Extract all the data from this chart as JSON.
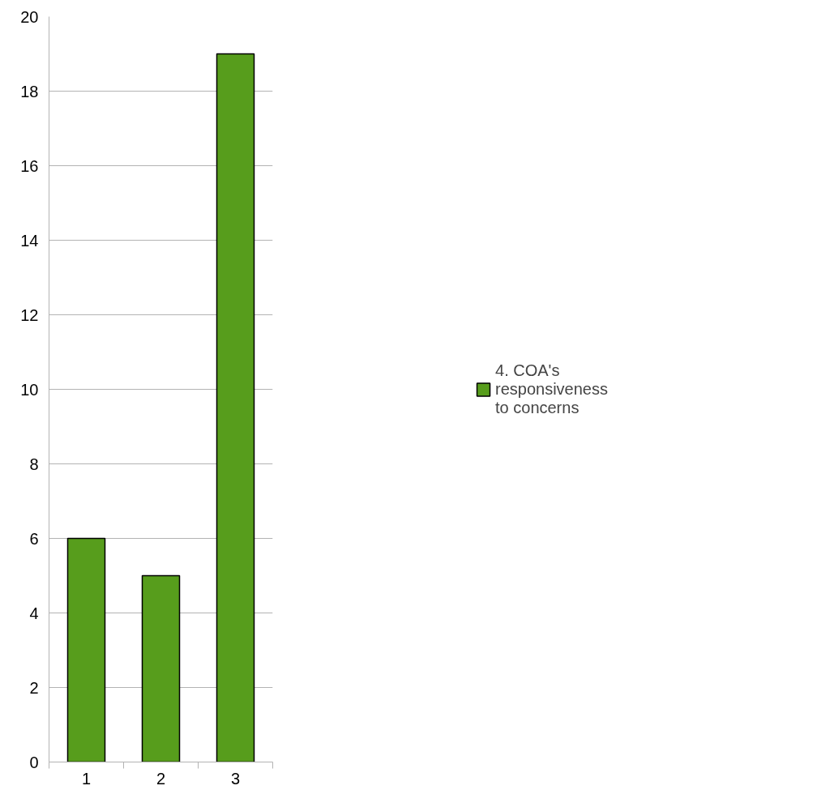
{
  "chart_data": {
    "type": "bar",
    "categories": [
      "1",
      "2",
      "3"
    ],
    "series": [
      {
        "name": "4. COA's responsiveness to concerns",
        "color": "#579d1c",
        "values": [
          6,
          5,
          19
        ]
      }
    ],
    "ylim": [
      0,
      20
    ],
    "yticks": [
      0,
      2,
      4,
      6,
      8,
      10,
      12,
      14,
      16,
      18,
      20
    ],
    "grid": "y",
    "legend": "right"
  }
}
